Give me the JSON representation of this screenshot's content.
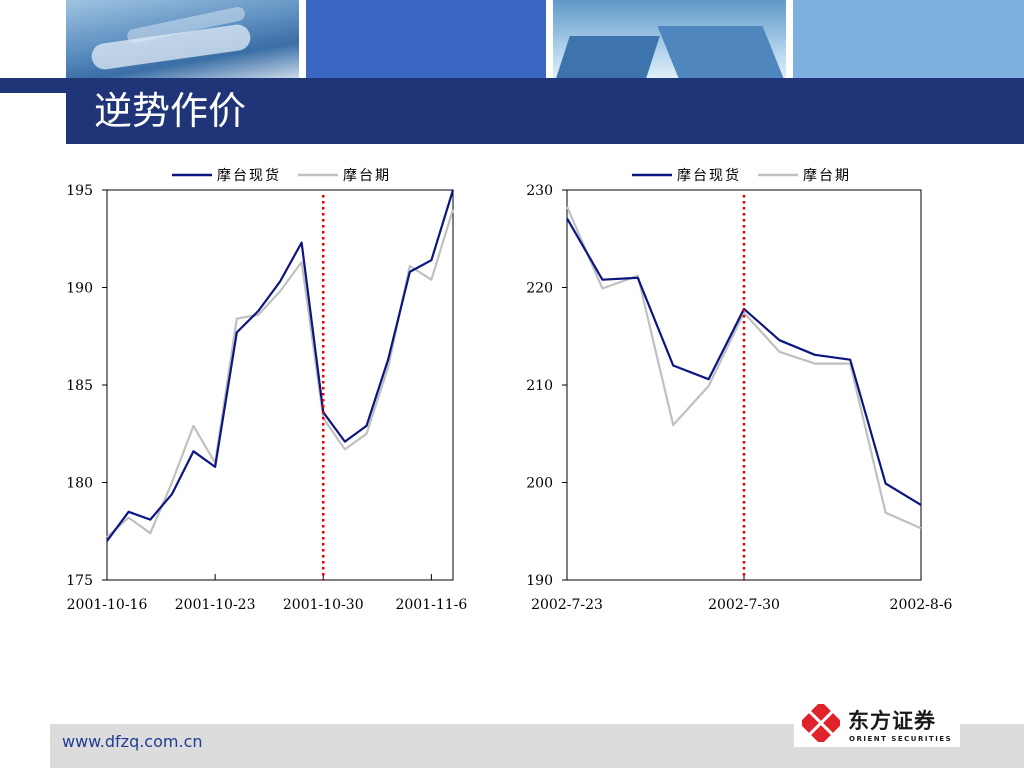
{
  "slide": {
    "title": "逆势作价",
    "footer_url": "www.dfzq.com.cn",
    "logo_cn": "东方证券",
    "logo_en": "ORIENT SECURITIES"
  },
  "colors": {
    "spot": "#0d1580",
    "futures": "#c0c0c0",
    "event_line": "#e00000",
    "title_bar": "#1f3578",
    "logo_red": "#e0232a"
  },
  "chart_data": [
    {
      "type": "line",
      "legend": [
        "摩台现货",
        "摩台期"
      ],
      "legend_position": "top",
      "ylim": [
        175,
        195
      ],
      "yticks": [
        "175",
        "180",
        "185",
        "190",
        "195"
      ],
      "xticks": [
        "2001-10-16",
        "2001-10-23",
        "2001-10-30",
        "2001-11-6"
      ],
      "xtick_index": [
        0,
        5,
        10,
        15
      ],
      "event_index": 10,
      "series": [
        {
          "name": "摩台现货",
          "values": [
            177.0,
            178.5,
            178.1,
            179.4,
            181.6,
            180.8,
            187.7,
            188.8,
            190.3,
            192.3,
            183.6,
            182.1,
            182.9,
            186.3,
            190.8,
            191.4,
            195.0
          ]
        },
        {
          "name": "摩台期",
          "values": [
            177.2,
            178.2,
            177.4,
            180.0,
            182.9,
            181.0,
            188.4,
            188.6,
            189.8,
            191.3,
            183.3,
            181.7,
            182.5,
            185.9,
            191.1,
            190.4,
            194.0
          ]
        }
      ]
    },
    {
      "type": "line",
      "legend": [
        "摩台现货",
        "摩台期"
      ],
      "legend_position": "top",
      "ylim": [
        190,
        230
      ],
      "yticks": [
        "190",
        "200",
        "210",
        "220",
        "230"
      ],
      "xticks": [
        "2002-7-23",
        "2002-7-30",
        "2002-8-6"
      ],
      "xtick_index": [
        0,
        5,
        10
      ],
      "event_index": 5,
      "series": [
        {
          "name": "摩台现货",
          "values": [
            227.1,
            220.8,
            221.0,
            212.0,
            210.6,
            217.8,
            214.6,
            213.1,
            212.6,
            199.9,
            197.7
          ]
        },
        {
          "name": "摩台期",
          "values": [
            228.3,
            219.9,
            221.2,
            205.9,
            209.9,
            217.4,
            213.4,
            212.2,
            212.2,
            196.9,
            195.3
          ]
        }
      ]
    }
  ]
}
